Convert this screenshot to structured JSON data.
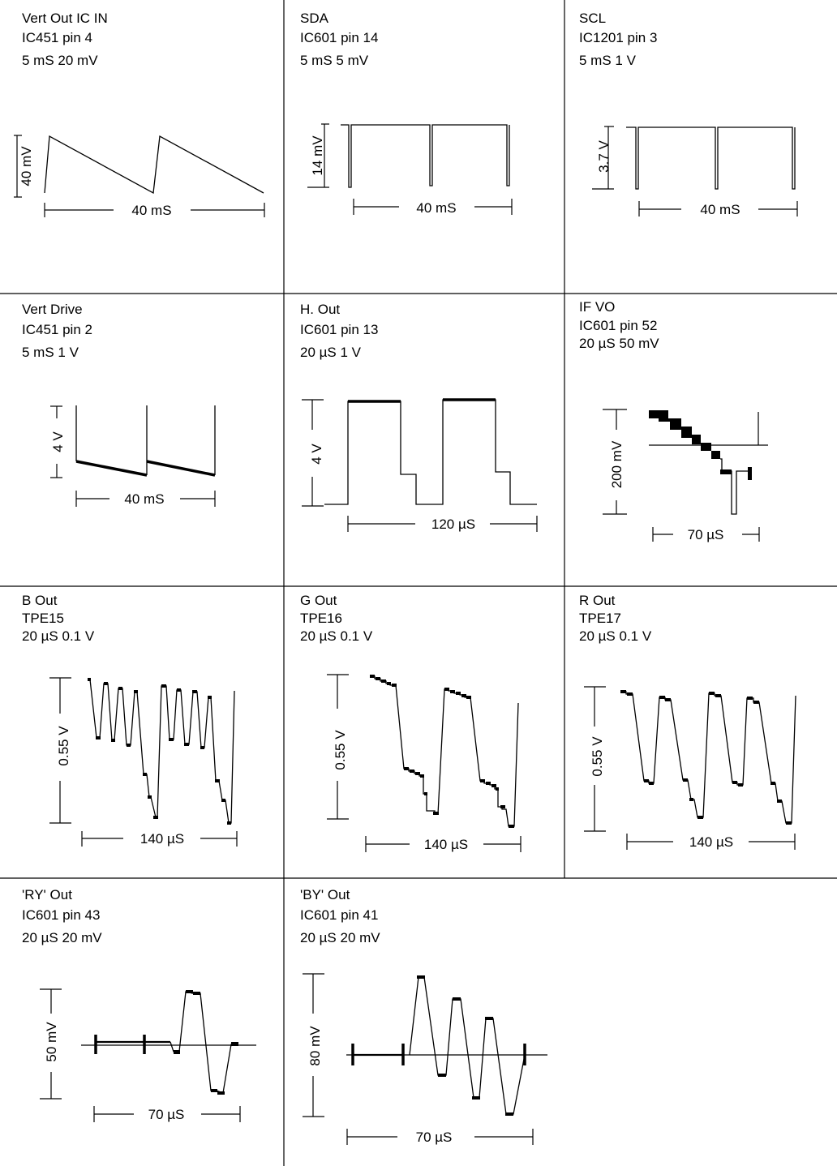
{
  "cells": [
    {
      "id": "vert-out",
      "lines": [
        "Vert Out IC IN",
        "IC451 pin 4",
        "5 mS 20 mV"
      ],
      "amplitude": "40 mV",
      "period": "40 mS"
    },
    {
      "id": "sda",
      "lines": [
        "SDA",
        "IC601 pin 14",
        "5 mS 5 mV"
      ],
      "amplitude": "14 mV",
      "period": "40 mS"
    },
    {
      "id": "scl",
      "lines": [
        "SCL",
        "IC1201 pin 3",
        "5 mS 1 V"
      ],
      "amplitude": "3.7 V",
      "period": "40 mS"
    },
    {
      "id": "vert-drive",
      "lines": [
        "Vert Drive",
        "IC451 pin 2",
        "5 mS 1 V"
      ],
      "amplitude": "4 V",
      "period": "40 mS"
    },
    {
      "id": "h-out",
      "lines": [
        "H. Out",
        "IC601 pin 13",
        "20 µS 1 V"
      ],
      "amplitude": "4 V",
      "period": "120 µS"
    },
    {
      "id": "if-vo",
      "lines": [
        "IF VO",
        "IC601 pin 52",
        "20 µS 50 mV"
      ],
      "amplitude": "200 mV",
      "period": "70 µS"
    },
    {
      "id": "b-out",
      "lines": [
        "B Out",
        "TPE15",
        "20 µS 0.1 V"
      ],
      "amplitude": "0.55 V",
      "period": "140 µS"
    },
    {
      "id": "g-out",
      "lines": [
        "G Out",
        "TPE16",
        "20 µS 0.1 V"
      ],
      "amplitude": "0.55 V",
      "period": "140 µS"
    },
    {
      "id": "r-out",
      "lines": [
        "R Out",
        "TPE17",
        "20 µS 0.1 V"
      ],
      "amplitude": "0.55 V",
      "period": "140 µS"
    },
    {
      "id": "ry-out",
      "lines": [
        "'RY' Out",
        "IC601 pin 43",
        "20 µS 20 mV"
      ],
      "amplitude": "50 mV",
      "period": "70 µS"
    },
    {
      "id": "by-out",
      "lines": [
        "'BY' Out",
        "IC601 pin 41",
        "20 µS 20 mV"
      ],
      "amplitude": "80 mV",
      "period": "70 µS"
    }
  ]
}
